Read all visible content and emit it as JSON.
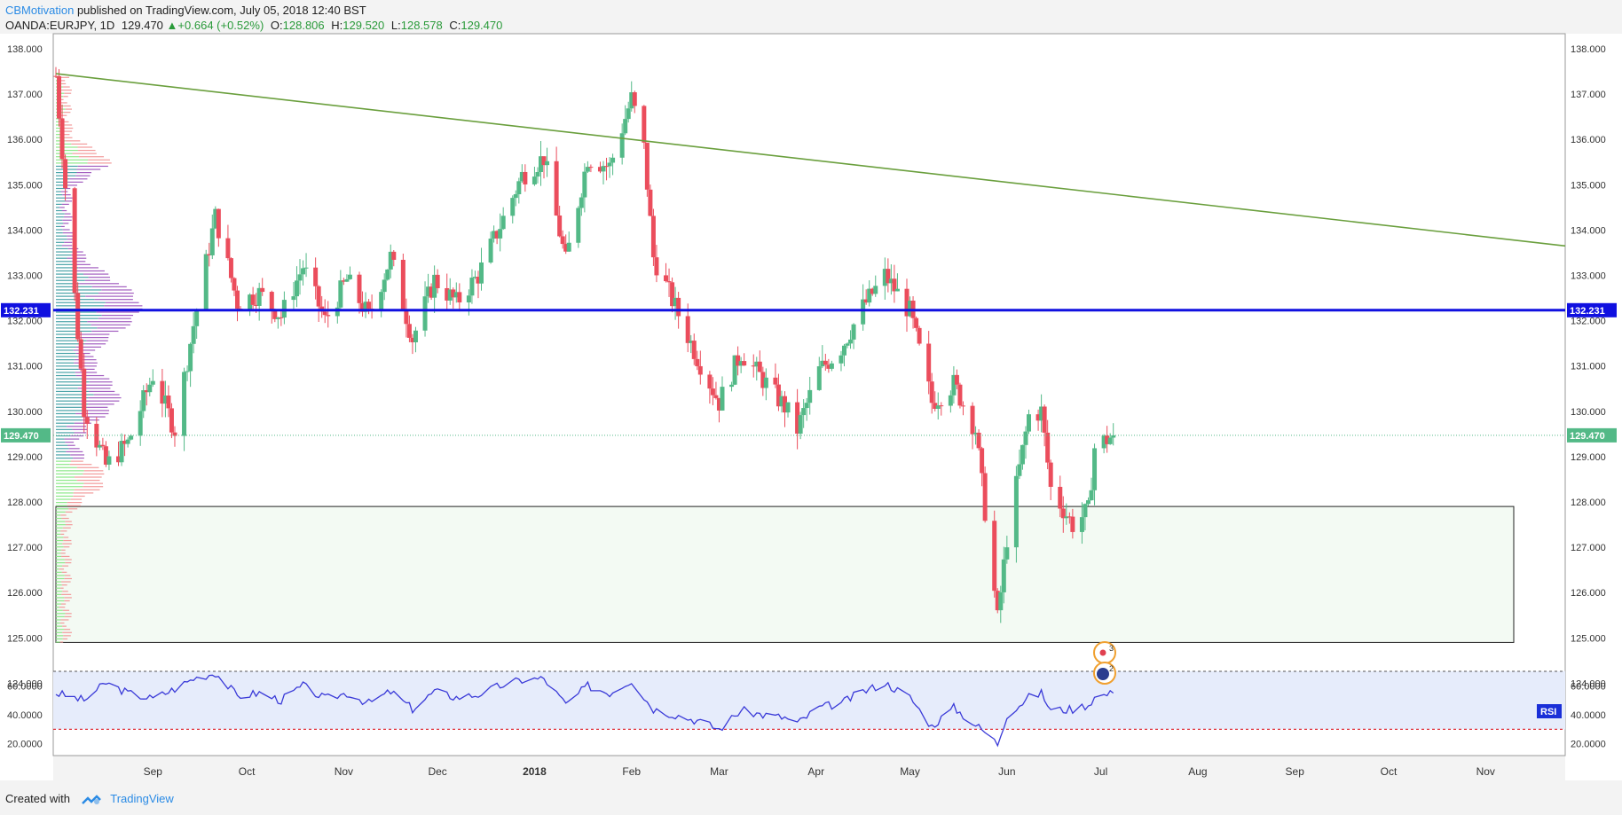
{
  "header": {
    "author": "CBMotivation",
    "published": "published on TradingView.com, July 05, 2018 12:40 BST",
    "symbol": "OANDA:EURJPY, 1D",
    "price": "129.470",
    "change": "+0.664 (+0.52%)",
    "o_label": "O:",
    "o": "128.806",
    "h_label": "H:",
    "h": "129.520",
    "l_label": "L:",
    "l": "128.578",
    "c_label": "C:",
    "c": "129.470"
  },
  "footer": {
    "created_with": "Created with",
    "brand": "TradingView"
  },
  "colors": {
    "up": "#53b987",
    "down": "#eb4d5c",
    "trendline": "#6a9f3d",
    "level": "#1010e0",
    "rsi": "#3a3ad8",
    "zone": "#e9f5e9"
  },
  "chart_data": [
    {
      "type": "candlestick",
      "symbol": "OANDA:EURJPY",
      "interval": "1D",
      "ylim": [
        123.8,
        138.3
      ],
      "y_ticks": [
        "138.000",
        "137.000",
        "136.000",
        "135.000",
        "134.000",
        "133.000",
        "132.000",
        "131.000",
        "130.000",
        "129.000",
        "128.000",
        "127.000",
        "126.000",
        "125.000",
        "124.000"
      ],
      "x_ticks": [
        "Sep",
        "Oct",
        "Nov",
        "Dec",
        "2018",
        "Feb",
        "Mar",
        "Apr",
        "May",
        "Jun",
        "Jul",
        "Aug",
        "Sep",
        "Oct",
        "Nov"
      ],
      "price_label": "129.470",
      "level_label": "132.231",
      "level": 132.231,
      "last_price": 129.47,
      "trendline": {
        "start": [
          "2017-08-01",
          137.45
        ],
        "end": [
          "2018-11-24",
          133.65
        ]
      },
      "demand_zone": {
        "from": "2017-08-01",
        "to": "2018-11-10",
        "low": 124.9,
        "high": 127.9
      },
      "ohlc_anchors": [
        [
          "2017-08-01",
          137.4
        ],
        [
          "2017-08-10",
          130.1
        ],
        [
          "2017-08-17",
          128.8
        ],
        [
          "2017-08-24",
          129.3
        ],
        [
          "2017-09-01",
          130.8
        ],
        [
          "2017-09-08",
          129.6
        ],
        [
          "2017-09-14",
          131.9
        ],
        [
          "2017-09-21",
          134.3
        ],
        [
          "2017-09-28",
          132.4
        ],
        [
          "2017-10-05",
          132.6
        ],
        [
          "2017-10-12",
          132.1
        ],
        [
          "2017-10-19",
          133.2
        ],
        [
          "2017-10-26",
          132.0
        ],
        [
          "2017-11-02",
          132.9
        ],
        [
          "2017-11-09",
          132.1
        ],
        [
          "2017-11-16",
          133.4
        ],
        [
          "2017-11-23",
          131.6
        ],
        [
          "2017-11-30",
          132.9
        ],
        [
          "2017-12-07",
          132.4
        ],
        [
          "2017-12-14",
          133.0
        ],
        [
          "2017-12-21",
          134.1
        ],
        [
          "2017-12-28",
          135.2
        ],
        [
          "2018-01-04",
          135.6
        ],
        [
          "2018-01-11",
          133.3
        ],
        [
          "2018-01-18",
          135.6
        ],
        [
          "2018-01-25",
          135.4
        ],
        [
          "2018-02-01",
          136.9
        ],
        [
          "2018-02-05",
          135.8
        ],
        [
          "2018-02-08",
          133.4
        ],
        [
          "2018-02-15",
          132.3
        ],
        [
          "2018-02-22",
          131.2
        ],
        [
          "2018-03-01",
          130.2
        ],
        [
          "2018-03-08",
          131.3
        ],
        [
          "2018-03-15",
          130.7
        ],
        [
          "2018-03-22",
          130.1
        ],
        [
          "2018-03-26",
          129.6
        ],
        [
          "2018-04-02",
          130.9
        ],
        [
          "2018-04-09",
          131.4
        ],
        [
          "2018-04-16",
          132.3
        ],
        [
          "2018-04-23",
          133.0
        ],
        [
          "2018-05-01",
          132.2
        ],
        [
          "2018-05-08",
          130.2
        ],
        [
          "2018-05-15",
          130.6
        ],
        [
          "2018-05-22",
          129.6
        ],
        [
          "2018-05-25",
          127.8
        ],
        [
          "2018-05-29",
          125.4
        ],
        [
          "2018-06-01",
          127.2
        ],
        [
          "2018-06-08",
          129.9
        ],
        [
          "2018-06-12",
          130.0
        ],
        [
          "2018-06-15",
          128.3
        ],
        [
          "2018-06-22",
          127.5
        ],
        [
          "2018-06-27",
          127.8
        ],
        [
          "2018-06-29",
          129.2
        ],
        [
          "2018-07-05",
          129.47
        ]
      ]
    },
    {
      "type": "line",
      "indicator": "RSI",
      "label": "RSI",
      "ylim": [
        15,
        73
      ],
      "y_ticks": [
        "60.0000",
        "40.0000",
        "20.0000"
      ],
      "overbought": 70,
      "oversold": 30,
      "series": [
        {
          "values_anchors": [
            [
              "2017-08-01",
              55
            ],
            [
              "2017-08-10",
              50
            ],
            [
              "2017-08-17",
              62
            ],
            [
              "2017-08-24",
              55
            ],
            [
              "2017-09-01",
              51
            ],
            [
              "2017-09-08",
              58
            ],
            [
              "2017-09-14",
              65
            ],
            [
              "2017-09-21",
              69
            ],
            [
              "2017-09-28",
              53
            ],
            [
              "2017-10-05",
              55
            ],
            [
              "2017-10-12",
              50
            ],
            [
              "2017-10-19",
              60
            ],
            [
              "2017-10-26",
              51
            ],
            [
              "2017-11-02",
              55
            ],
            [
              "2017-11-09",
              48
            ],
            [
              "2017-11-16",
              56
            ],
            [
              "2017-11-23",
              44
            ],
            [
              "2017-11-30",
              56
            ],
            [
              "2017-12-07",
              52
            ],
            [
              "2017-12-14",
              54
            ],
            [
              "2017-12-21",
              60
            ],
            [
              "2017-12-28",
              64
            ],
            [
              "2018-01-04",
              65
            ],
            [
              "2018-01-11",
              47
            ],
            [
              "2018-01-18",
              60
            ],
            [
              "2018-01-25",
              55
            ],
            [
              "2018-02-01",
              64
            ],
            [
              "2018-02-05",
              52
            ],
            [
              "2018-02-08",
              44
            ],
            [
              "2018-02-15",
              40
            ],
            [
              "2018-02-22",
              36
            ],
            [
              "2018-03-01",
              30
            ],
            [
              "2018-03-08",
              43
            ],
            [
              "2018-03-15",
              40
            ],
            [
              "2018-03-22",
              38
            ],
            [
              "2018-03-26",
              34
            ],
            [
              "2018-04-02",
              45
            ],
            [
              "2018-04-09",
              48
            ],
            [
              "2018-04-16",
              56
            ],
            [
              "2018-04-23",
              62
            ],
            [
              "2018-05-01",
              52
            ],
            [
              "2018-05-08",
              32
            ],
            [
              "2018-05-15",
              45
            ],
            [
              "2018-05-22",
              33
            ],
            [
              "2018-05-25",
              28
            ],
            [
              "2018-05-29",
              20
            ],
            [
              "2018-06-01",
              40
            ],
            [
              "2018-06-08",
              52
            ],
            [
              "2018-06-12",
              55
            ],
            [
              "2018-06-15",
              43
            ],
            [
              "2018-06-22",
              44
            ],
            [
              "2018-06-27",
              47
            ],
            [
              "2018-06-29",
              52
            ],
            [
              "2018-07-05",
              55
            ]
          ]
        }
      ]
    }
  ]
}
